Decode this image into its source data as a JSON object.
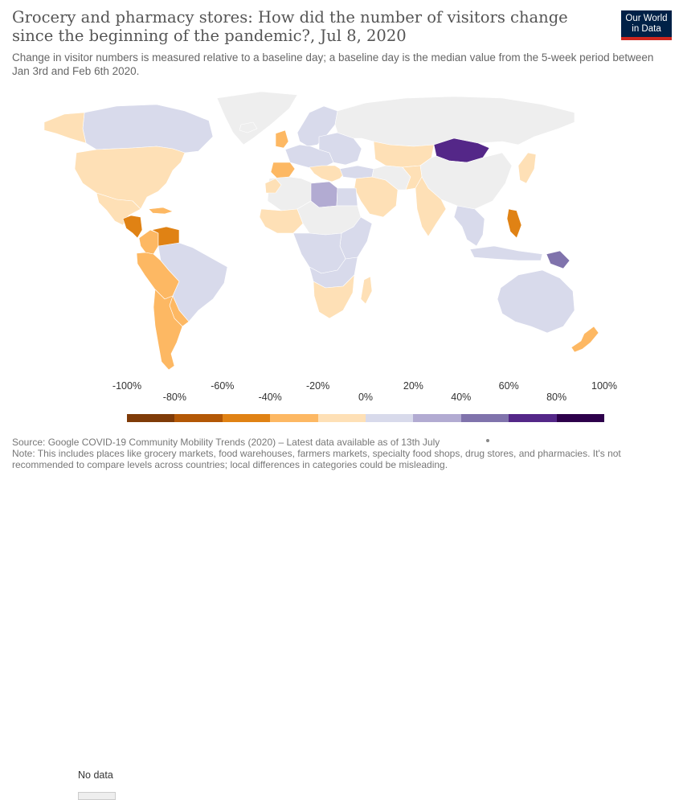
{
  "header": {
    "title": "Grocery and pharmacy stores: How did the number of visitors change since the beginning of the pandemic?, Jul 8, 2020",
    "subtitle": "Change in visitor numbers is measured relative to a baseline day; a baseline day is the median value from the 5-week period between Jan 3rd and Feb 6th 2020."
  },
  "logo": {
    "line1": "Our World",
    "line2": "in Data",
    "background": "#002147",
    "accent": "#ce261e"
  },
  "legend": {
    "no_data_label": "No data",
    "no_data_color": "#eeeeee",
    "ticks": [
      "-100%",
      "-80%",
      "-60%",
      "-40%",
      "-20%",
      "0%",
      "20%",
      "40%",
      "60%",
      "80%",
      "100%"
    ],
    "bins": [
      {
        "from": -100,
        "to": -80,
        "color": "#7f3b08"
      },
      {
        "from": -80,
        "to": -60,
        "color": "#b35806"
      },
      {
        "from": -60,
        "to": -40,
        "color": "#e08214"
      },
      {
        "from": -40,
        "to": -20,
        "color": "#fdb863"
      },
      {
        "from": -20,
        "to": 0,
        "color": "#fee0b6"
      },
      {
        "from": 0,
        "to": 20,
        "color": "#d8daeb"
      },
      {
        "from": 20,
        "to": 40,
        "color": "#b2abd2"
      },
      {
        "from": 40,
        "to": 60,
        "color": "#8073ac"
      },
      {
        "from": 60,
        "to": 80,
        "color": "#542788"
      },
      {
        "from": 80,
        "to": 100,
        "color": "#2d004b"
      }
    ]
  },
  "map_colors": {
    "no_data": "#eeeeee",
    "bin_neg20_0": "#fee0b6",
    "bin_neg40_neg20": "#fdb863",
    "bin_neg60_neg40": "#e08214",
    "bin_0_20": "#d8daeb",
    "bin_20_40": "#b2abd2",
    "bin_40_60": "#8073ac",
    "bin_60_80": "#542788",
    "border": "#ffffff"
  },
  "footer": {
    "source": "Source: Google COVID-19 Community Mobility Trends (2020) – Latest data available as of 13th July",
    "note": "Note: This includes places like grocery markets, food warehouses, farmers markets, specialty food shops, drug stores, and pharmacies. It's not recommended to compare levels across countries; local differences in categories could be misleading."
  }
}
